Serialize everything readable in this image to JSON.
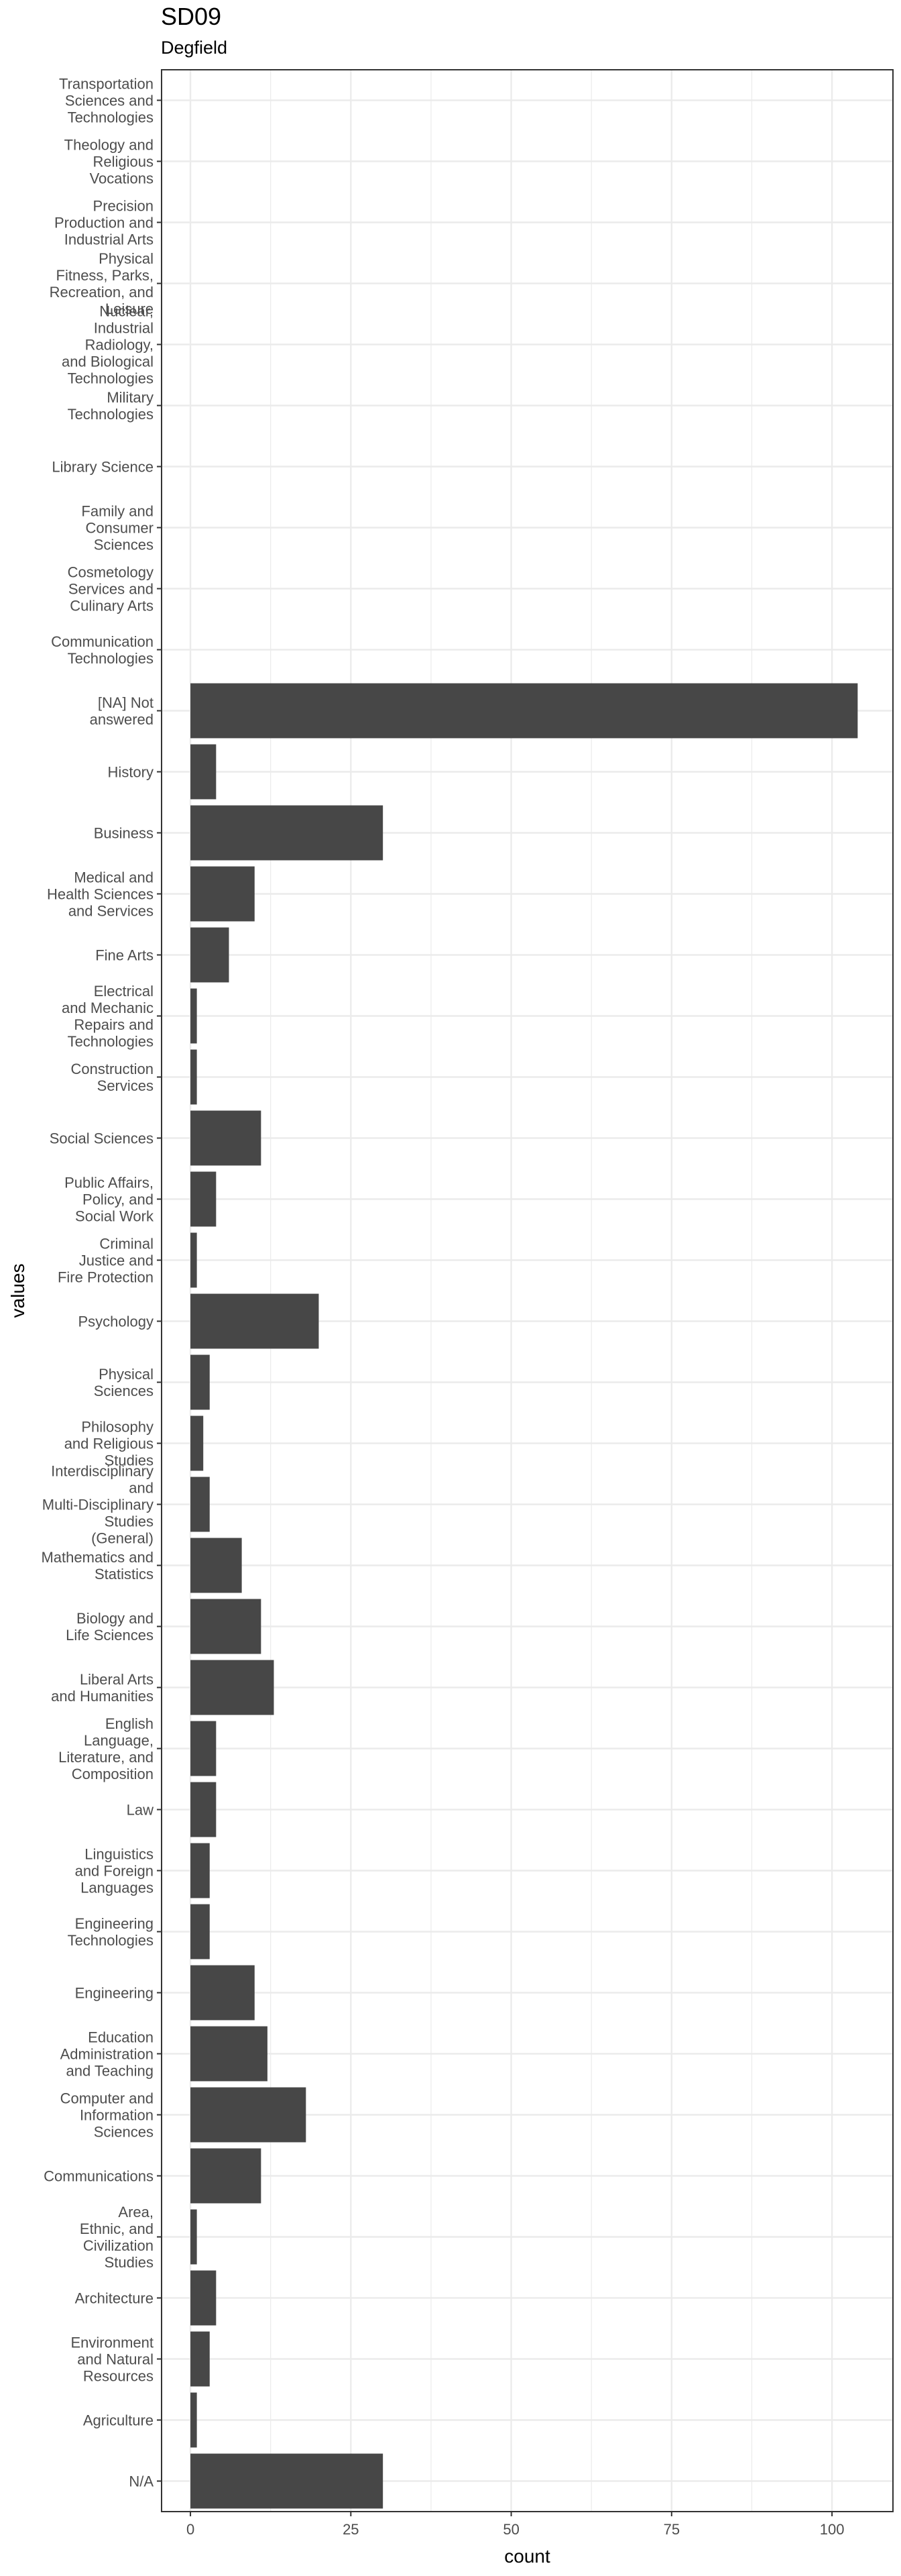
{
  "chart_data": {
    "type": "bar",
    "orientation": "horizontal",
    "title": "SD09",
    "subtitle": "Degfield",
    "xlabel": "count",
    "ylabel": "values",
    "xlim": [
      -4.5,
      109.5
    ],
    "xticks": [
      0,
      25,
      50,
      75,
      100
    ],
    "grid": true,
    "bar_color": "#474747",
    "categories": [
      "Transportation Sciences and Technologies",
      "Theology and Religious Vocations",
      "Precision Production and Industrial Arts",
      "Physical Fitness, Parks, Recreation, and Leisure",
      "Nuclear, Industrial Radiology, and Biological Technologies",
      "Military Technologies",
      "Library Science",
      "Family and Consumer Sciences",
      "Cosmetology Services and Culinary Arts",
      "Communication Technologies",
      "[NA] Not answered",
      "History",
      "Business",
      "Medical and Health Sciences and Services",
      "Fine Arts",
      "Electrical and Mechanic Repairs and Technologies",
      "Construction Services",
      "Social Sciences",
      "Public Affairs, Policy, and Social Work",
      "Criminal Justice and Fire Protection",
      "Psychology",
      "Physical Sciences",
      "Philosophy and Religious Studies",
      "Interdisciplinary and Multi-Disciplinary Studies (General)",
      "Mathematics and Statistics",
      "Biology and Life Sciences",
      "Liberal Arts and Humanities",
      "English Language, Literature, and Composition",
      "Law",
      "Linguistics and Foreign Languages",
      "Engineering Technologies",
      "Engineering",
      "Education Administration and Teaching",
      "Computer and Information Sciences",
      "Communications",
      "Area, Ethnic, and Civilization Studies",
      "Architecture",
      "Environment and Natural Resources",
      "Agriculture",
      "N/A"
    ],
    "category_lines": [
      [
        "Transportation",
        "Sciences and",
        "Technologies"
      ],
      [
        "Theology and",
        "Religious",
        "Vocations"
      ],
      [
        "Precision",
        "Production and",
        "Industrial Arts"
      ],
      [
        "Physical",
        "Fitness, Parks,",
        "Recreation, and",
        "Leisure"
      ],
      [
        "Nuclear,",
        "Industrial",
        "Radiology,",
        "and Biological",
        "Technologies"
      ],
      [
        "Military",
        "Technologies"
      ],
      [
        "Library Science"
      ],
      [
        "Family and",
        "Consumer",
        "Sciences"
      ],
      [
        "Cosmetology",
        "Services and",
        "Culinary Arts"
      ],
      [
        "Communication",
        "Technologies"
      ],
      [
        "[NA] Not",
        "answered"
      ],
      [
        "History"
      ],
      [
        "Business"
      ],
      [
        "Medical and",
        "Health Sciences",
        "and Services"
      ],
      [
        "Fine Arts"
      ],
      [
        "Electrical",
        "and Mechanic",
        "Repairs and",
        "Technologies"
      ],
      [
        "Construction",
        "Services"
      ],
      [
        "Social Sciences"
      ],
      [
        "Public Affairs,",
        "Policy, and",
        "Social Work"
      ],
      [
        "Criminal",
        "Justice and",
        "Fire Protection"
      ],
      [
        "Psychology"
      ],
      [
        "Physical",
        "Sciences"
      ],
      [
        "Philosophy",
        "and Religious",
        "Studies"
      ],
      [
        "Interdisciplinary",
        "and",
        "Multi-Disciplinary",
        "Studies",
        "(General)"
      ],
      [
        "Mathematics and",
        "Statistics"
      ],
      [
        "Biology and",
        "Life Sciences"
      ],
      [
        "Liberal Arts",
        "and Humanities"
      ],
      [
        "English",
        "Language,",
        "Literature, and",
        "Composition"
      ],
      [
        "Law"
      ],
      [
        "Linguistics",
        "and Foreign",
        "Languages"
      ],
      [
        "Engineering",
        "Technologies"
      ],
      [
        "Engineering"
      ],
      [
        "Education",
        "Administration",
        "and Teaching"
      ],
      [
        "Computer and",
        "Information",
        "Sciences"
      ],
      [
        "Communications"
      ],
      [
        "Area,",
        "Ethnic, and",
        "Civilization",
        "Studies"
      ],
      [
        "Architecture"
      ],
      [
        "Environment",
        "and Natural",
        "Resources"
      ],
      [
        "Agriculture"
      ],
      [
        "N/A"
      ]
    ],
    "values": [
      0,
      0,
      0,
      0,
      0,
      0,
      0,
      0,
      0,
      0,
      104,
      4,
      30,
      10,
      6,
      1,
      1,
      11,
      4,
      1,
      20,
      3,
      2,
      3,
      8,
      11,
      13,
      4,
      4,
      3,
      3,
      10,
      12,
      18,
      11,
      1,
      4,
      3,
      1,
      30
    ]
  }
}
